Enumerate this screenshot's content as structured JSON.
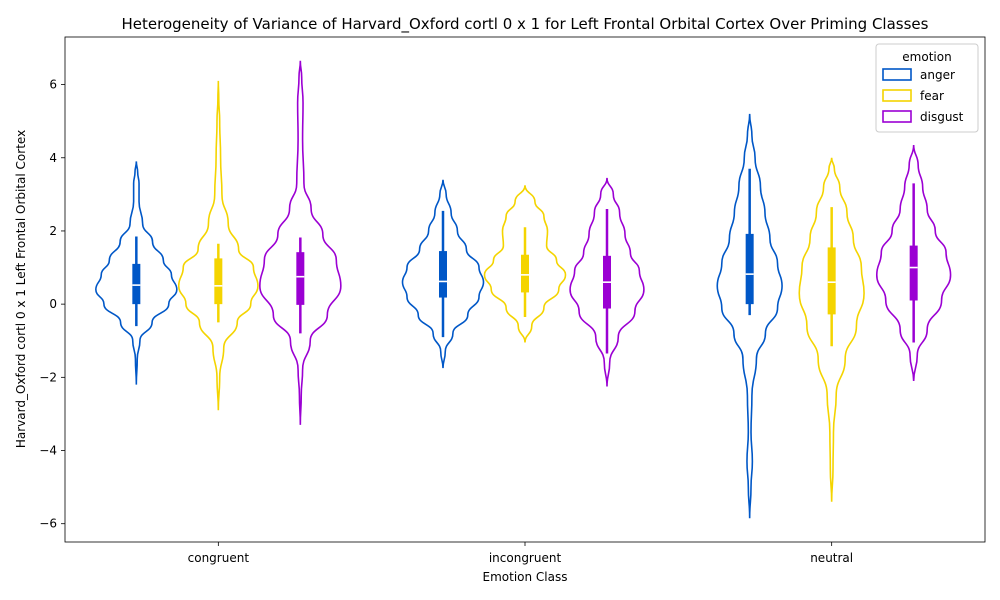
{
  "chart_data": {
    "type": "violin",
    "title": "Heterogeneity of Variance of Harvard_Oxford cortl 0 x 1 for Left Frontal Orbital Cortex Over Priming Classes",
    "xlabel": "Emotion Class",
    "ylabel": "Harvard_Oxford cortl 0 x 1 Left Frontal Orbital Cortex",
    "categories": [
      "congruent",
      "incongruent",
      "neutral"
    ],
    "ylim": [
      -6.5,
      7.3
    ],
    "yticks": [
      "−6",
      "−4",
      "−2",
      "0",
      "2",
      "4",
      "6"
    ],
    "ytick_values": [
      -6,
      -4,
      -2,
      0,
      2,
      4,
      6
    ],
    "grid": false,
    "legend": {
      "title": "emotion",
      "placement": "top-right",
      "entries": [
        "anger",
        "fear",
        "disgust"
      ]
    },
    "series": [
      {
        "name": "anger",
        "color": "#0057c7",
        "violins": [
          {
            "category": "congruent",
            "min": -2.2,
            "max": 3.9,
            "q1": 0.0,
            "median": 0.52,
            "q3": 1.1,
            "whisker_low": -0.6,
            "whisker_high": 1.85,
            "density": [
              [
                -2.2,
                0.0
              ],
              [
                -1.5,
                0.02
              ],
              [
                -1.0,
                0.08
              ],
              [
                -0.5,
                0.35
              ],
              [
                0.0,
                0.72
              ],
              [
                0.4,
                0.9
              ],
              [
                0.8,
                0.78
              ],
              [
                1.2,
                0.6
              ],
              [
                1.7,
                0.36
              ],
              [
                2.2,
                0.14
              ],
              [
                2.8,
                0.06
              ],
              [
                3.3,
                0.06
              ],
              [
                3.6,
                0.03
              ],
              [
                3.9,
                0.0
              ]
            ]
          },
          {
            "category": "incongruent",
            "min": -1.75,
            "max": 3.4,
            "q1": 0.18,
            "median": 0.62,
            "q3": 1.45,
            "whisker_low": -0.9,
            "whisker_high": 2.55,
            "density": [
              [
                -1.75,
                0.0
              ],
              [
                -1.3,
                0.05
              ],
              [
                -0.8,
                0.22
              ],
              [
                -0.3,
                0.55
              ],
              [
                0.2,
                0.8
              ],
              [
                0.6,
                0.9
              ],
              [
                1.0,
                0.8
              ],
              [
                1.5,
                0.52
              ],
              [
                2.0,
                0.32
              ],
              [
                2.5,
                0.18
              ],
              [
                3.0,
                0.07
              ],
              [
                3.4,
                0.0
              ]
            ]
          },
          {
            "category": "neutral",
            "min": -5.85,
            "max": 5.2,
            "q1": 0.0,
            "median": 0.82,
            "q3": 1.92,
            "whisker_low": -0.3,
            "whisker_high": 3.7,
            "density": [
              [
                -5.85,
                0.0
              ],
              [
                -5.0,
                0.03
              ],
              [
                -4.3,
                0.06
              ],
              [
                -3.5,
                0.03
              ],
              [
                -2.5,
                0.05
              ],
              [
                -1.5,
                0.15
              ],
              [
                -0.8,
                0.35
              ],
              [
                -0.1,
                0.62
              ],
              [
                0.5,
                0.72
              ],
              [
                1.1,
                0.62
              ],
              [
                1.8,
                0.45
              ],
              [
                2.5,
                0.34
              ],
              [
                3.2,
                0.24
              ],
              [
                4.0,
                0.12
              ],
              [
                4.6,
                0.05
              ],
              [
                5.2,
                0.0
              ]
            ]
          }
        ]
      },
      {
        "name": "fear",
        "color": "#f4d400",
        "violins": [
          {
            "category": "congruent",
            "min": -2.9,
            "max": 6.1,
            "q1": 0.0,
            "median": 0.5,
            "q3": 1.25,
            "whisker_low": -0.5,
            "whisker_high": 1.65,
            "density": [
              [
                -2.9,
                0.0
              ],
              [
                -2.0,
                0.03
              ],
              [
                -1.2,
                0.12
              ],
              [
                -0.5,
                0.42
              ],
              [
                0.0,
                0.72
              ],
              [
                0.5,
                0.88
              ],
              [
                1.0,
                0.78
              ],
              [
                1.5,
                0.45
              ],
              [
                2.2,
                0.22
              ],
              [
                3.0,
                0.08
              ],
              [
                4.0,
                0.05
              ],
              [
                5.0,
                0.03
              ],
              [
                5.6,
                0.01
              ],
              [
                6.1,
                0.0
              ]
            ]
          },
          {
            "category": "incongruent",
            "min": -1.05,
            "max": 3.25,
            "q1": 0.32,
            "median": 0.8,
            "q3": 1.35,
            "whisker_low": -0.35,
            "whisker_high": 2.1,
            "density": [
              [
                -1.05,
                0.0
              ],
              [
                -0.6,
                0.15
              ],
              [
                -0.1,
                0.42
              ],
              [
                0.4,
                0.75
              ],
              [
                0.8,
                0.9
              ],
              [
                1.2,
                0.7
              ],
              [
                1.6,
                0.48
              ],
              [
                2.0,
                0.5
              ],
              [
                2.4,
                0.42
              ],
              [
                2.8,
                0.22
              ],
              [
                3.25,
                0.0
              ]
            ]
          },
          {
            "category": "neutral",
            "min": -5.4,
            "max": 4.0,
            "q1": -0.28,
            "median": 0.6,
            "q3": 1.55,
            "whisker_low": -1.15,
            "whisker_high": 2.65,
            "density": [
              [
                -5.4,
                0.0
              ],
              [
                -4.5,
                0.03
              ],
              [
                -3.5,
                0.04
              ],
              [
                -2.5,
                0.1
              ],
              [
                -1.5,
                0.3
              ],
              [
                -0.6,
                0.55
              ],
              [
                0.3,
                0.72
              ],
              [
                1.0,
                0.66
              ],
              [
                1.8,
                0.48
              ],
              [
                2.5,
                0.34
              ],
              [
                3.2,
                0.18
              ],
              [
                3.7,
                0.06
              ],
              [
                4.0,
                0.0
              ]
            ]
          }
        ]
      },
      {
        "name": "disgust",
        "color": "#9b00d3",
        "violins": [
          {
            "category": "congruent",
            "min": -3.3,
            "max": 6.65,
            "q1": -0.02,
            "median": 0.75,
            "q3": 1.42,
            "whisker_low": -0.8,
            "whisker_high": 1.82,
            "density": [
              [
                -3.3,
                0.0
              ],
              [
                -2.5,
                0.02
              ],
              [
                -1.8,
                0.05
              ],
              [
                -1.0,
                0.22
              ],
              [
                -0.3,
                0.6
              ],
              [
                0.5,
                0.9
              ],
              [
                1.2,
                0.8
              ],
              [
                1.9,
                0.5
              ],
              [
                2.6,
                0.24
              ],
              [
                3.3,
                0.08
              ],
              [
                4.5,
                0.05
              ],
              [
                5.5,
                0.06
              ],
              [
                6.2,
                0.03
              ],
              [
                6.65,
                0.0
              ]
            ]
          },
          {
            "category": "incongruent",
            "min": -2.25,
            "max": 3.45,
            "q1": -0.12,
            "median": 0.6,
            "q3": 1.32,
            "whisker_low": -1.35,
            "whisker_high": 2.6,
            "density": [
              [
                -2.25,
                0.0
              ],
              [
                -1.6,
                0.06
              ],
              [
                -0.9,
                0.25
              ],
              [
                -0.2,
                0.62
              ],
              [
                0.4,
                0.82
              ],
              [
                0.9,
                0.72
              ],
              [
                1.4,
                0.52
              ],
              [
                1.9,
                0.4
              ],
              [
                2.5,
                0.28
              ],
              [
                3.0,
                0.14
              ],
              [
                3.45,
                0.0
              ]
            ]
          },
          {
            "category": "neutral",
            "min": -2.1,
            "max": 4.35,
            "q1": 0.1,
            "median": 1.0,
            "q3": 1.6,
            "whisker_low": -1.05,
            "whisker_high": 3.3,
            "density": [
              [
                -2.1,
                0.0
              ],
              [
                -1.4,
                0.08
              ],
              [
                -0.7,
                0.3
              ],
              [
                0.1,
                0.62
              ],
              [
                0.8,
                0.82
              ],
              [
                1.4,
                0.72
              ],
              [
                2.0,
                0.48
              ],
              [
                2.6,
                0.3
              ],
              [
                3.2,
                0.2
              ],
              [
                3.8,
                0.1
              ],
              [
                4.35,
                0.0
              ]
            ]
          }
        ]
      }
    ]
  }
}
